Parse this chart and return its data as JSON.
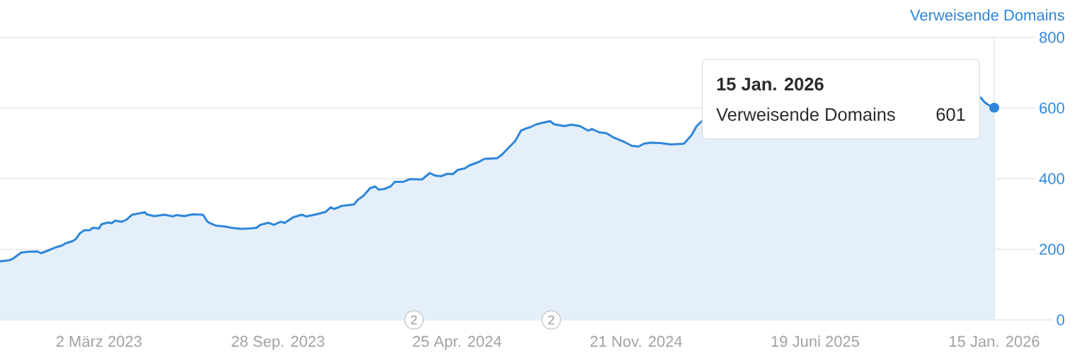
{
  "chart_data": {
    "type": "area",
    "legend": "top right",
    "grid": "y",
    "xlim": [
      "2022-11-06",
      "2026-04-08"
    ],
    "xticks": [
      {
        "value": "2023-03-02",
        "label": "2 März 2023"
      },
      {
        "value": "2023-09-28",
        "label": "28 Sep. 2023"
      },
      {
        "value": "2024-04-25",
        "label": "25 Apr. 2024"
      },
      {
        "value": "2024-11-21",
        "label": "21 Nov. 2024"
      },
      {
        "value": "2025-06-19",
        "label": "19 Juni 2025"
      },
      {
        "value": "2026-01-15",
        "label": "15 Jan. 2026"
      }
    ],
    "ylim": [
      0,
      800
    ],
    "yticks": [
      0,
      200,
      400,
      600,
      800
    ],
    "x": [
      "2022-11-06",
      "2022-11-17",
      "2022-11-21",
      "2022-12-01",
      "2022-12-09",
      "2022-12-20",
      "2022-12-24",
      "2023-01-03",
      "2023-01-11",
      "2023-01-18",
      "2023-01-22",
      "2023-01-30",
      "2023-02-03",
      "2023-02-08",
      "2023-02-13",
      "2023-02-19",
      "2023-02-23",
      "2023-03-02",
      "2023-03-05",
      "2023-03-13",
      "2023-03-17",
      "2023-03-21",
      "2023-03-29",
      "2023-04-04",
      "2023-04-10",
      "2023-04-21",
      "2023-04-25",
      "2023-04-27",
      "2023-05-06",
      "2023-05-18",
      "2023-05-28",
      "2023-06-01",
      "2023-06-10",
      "2023-06-20",
      "2023-07-02",
      "2023-07-07",
      "2023-07-11",
      "2023-07-17",
      "2023-07-27",
      "2023-08-04",
      "2023-08-15",
      "2023-08-26",
      "2023-09-03",
      "2023-09-07",
      "2023-09-15",
      "2023-09-17",
      "2023-09-23",
      "2023-10-01",
      "2023-10-06",
      "2023-10-16",
      "2023-10-26",
      "2023-10-31",
      "2023-11-12",
      "2023-11-23",
      "2023-11-29",
      "2023-12-03",
      "2023-12-12",
      "2023-12-26",
      "2023-12-31",
      "2024-01-06",
      "2024-01-14",
      "2024-01-20",
      "2024-01-24",
      "2024-01-31",
      "2024-02-07",
      "2024-02-12",
      "2024-02-22",
      "2024-03-01",
      "2024-03-09",
      "2024-03-15",
      "2024-03-24",
      "2024-03-30",
      "2024-04-06",
      "2024-04-14",
      "2024-04-20",
      "2024-04-26",
      "2024-05-04",
      "2024-05-09",
      "2024-05-21",
      "2024-05-27",
      "2024-06-11",
      "2024-06-17",
      "2024-06-25",
      "2024-07-02",
      "2024-07-09",
      "2024-07-16",
      "2024-07-20",
      "2024-07-27",
      "2024-08-03",
      "2024-08-12",
      "2024-08-17",
      "2024-08-29",
      "2024-09-06",
      "2024-09-16",
      "2024-09-26",
      "2024-09-30",
      "2024-10-09",
      "2024-10-17",
      "2024-10-26",
      "2024-11-08",
      "2024-11-16",
      "2024-11-24",
      "2024-11-30",
      "2024-12-08",
      "2024-12-19",
      "2025-01-01",
      "2025-01-16",
      "2025-01-25",
      "2025-01-31",
      "2025-02-06",
      "2025-07-01",
      "2025-12-30",
      "2026-01-04",
      "2026-01-08",
      "2026-01-15"
    ],
    "series": [
      {
        "name": "Verweisende Domains",
        "color": "#2f86d9",
        "values": [
          166,
          169,
          173,
          191,
          193,
          194,
          189,
          198,
          206,
          211,
          217,
          223,
          229,
          246,
          254,
          254,
          261,
          259,
          271,
          276,
          274,
          281,
          278,
          285,
          298,
          303,
          305,
          299,
          294,
          298,
          293,
          297,
          294,
          299,
          298,
          279,
          273,
          267,
          265,
          261,
          258,
          259,
          261,
          269,
          274,
          275,
          269,
          278,
          275,
          291,
          298,
          293,
          299,
          306,
          319,
          314,
          323,
          327,
          341,
          351,
          373,
          378,
          369,
          371,
          378,
          391,
          391,
          399,
          398,
          398,
          416,
          409,
          407,
          414,
          413,
          425,
          429,
          437,
          448,
          456,
          458,
          469,
          489,
          506,
          536,
          543,
          546,
          554,
          558,
          563,
          554,
          549,
          553,
          549,
          536,
          541,
          531,
          529,
          516,
          503,
          493,
          491,
          499,
          502,
          501,
          497,
          499,
          523,
          549,
          563,
          null,
          630,
          616,
          609,
          601
        ],
        "value_labels": [
          null,
          null,
          null,
          null,
          null,
          null,
          null,
          null,
          null,
          null,
          null,
          null,
          null,
          null,
          null,
          null,
          null,
          null,
          null,
          null,
          null,
          null,
          null,
          null,
          null,
          null,
          null,
          null,
          null,
          null,
          null,
          null,
          null,
          null,
          null,
          null,
          null,
          null,
          null,
          null,
          null,
          null,
          null,
          null,
          null,
          null,
          null,
          null,
          null,
          null,
          null,
          null,
          null,
          null,
          null,
          null,
          null,
          null,
          null,
          null,
          null,
          null,
          null,
          null,
          null,
          null,
          null,
          null,
          null,
          null,
          null,
          null,
          null,
          null,
          null,
          null,
          null,
          null,
          null,
          null,
          null,
          null,
          null,
          null,
          null,
          null,
          null,
          null,
          null,
          null,
          null,
          null,
          null,
          null,
          null,
          null,
          null,
          null,
          null,
          null,
          null,
          null,
          null,
          null,
          null,
          null,
          null,
          null,
          null,
          null,
          null,
          null,
          null,
          null,
          "601"
        ]
      }
    ],
    "annotations": [
      "15 Jan. 2026",
      "2",
      "2"
    ],
    "ref_lines": [
      {
        "axis": "x",
        "value": "2026-01-15",
        "color": "#e6e6e6"
      }
    ]
  }
}
